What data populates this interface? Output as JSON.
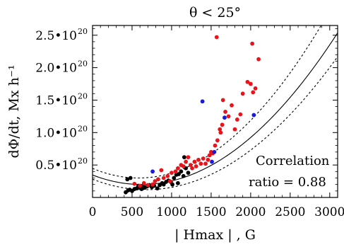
{
  "chart_data": {
    "type": "scatter",
    "title": "θ < 25°",
    "xlabel": "| Hmax | , G",
    "ylabel": "dΦ/dt, Mx h⁻¹",
    "xlim": [
      0,
      3100
    ],
    "ylim": [
      0,
      2.65e+20
    ],
    "x_ticks": [
      0,
      500,
      1000,
      1500,
      2000,
      2500,
      3000
    ],
    "x_tick_labels": [
      "0",
      "500",
      "1000",
      "1500",
      "2000",
      "2500",
      "3000"
    ],
    "y_ticks": [
      5e+19,
      1e+20,
      1.5e+20,
      2e+20,
      2.5e+20
    ],
    "y_tick_labels": [
      "0.5•10",
      "1.0•10",
      "1.5•10",
      "2.0•10",
      "2.5•10"
    ],
    "y_tick_exponent": "20",
    "grid": false,
    "annotation": {
      "line1": "Correlation",
      "line2": "ratio =  0.88"
    },
    "colors": {
      "black": "#000000",
      "red": "#e8141c",
      "blue": "#1a1adb"
    },
    "series": [
      {
        "color": "#000000",
        "points": [
          [
            420,
            8e+18
          ],
          [
            450,
            1.1e+19
          ],
          [
            470,
            1.2e+19
          ],
          [
            500,
            1e+19
          ],
          [
            530,
            1.3e+19
          ],
          [
            560,
            1.4e+19
          ],
          [
            580,
            1.8e+19
          ],
          [
            600,
            1.6e+19
          ],
          [
            620,
            1.3e+19
          ],
          [
            640,
            1.8e+19
          ],
          [
            660,
            1.5e+19
          ],
          [
            690,
            1.7e+19
          ],
          [
            720,
            1.9e+19
          ],
          [
            750,
            1.6e+19
          ],
          [
            780,
            1.8e+19
          ],
          [
            820,
            1.4e+19
          ],
          [
            850,
            1.9e+19
          ],
          [
            880,
            2.2e+19
          ],
          [
            900,
            2e+19
          ],
          [
            930,
            2.4e+19
          ],
          [
            960,
            2.6e+19
          ],
          [
            990,
            2.4e+19
          ],
          [
            1030,
            3e+19
          ],
          [
            1060,
            3.5e+19
          ],
          [
            1090,
            3.6e+19
          ],
          [
            1120,
            4e+19
          ],
          [
            1150,
            3.3e+19
          ],
          [
            1180,
            4.5e+19
          ],
          [
            1210,
            3.8e+19
          ],
          [
            1160,
            6.2e+19
          ],
          [
            440,
            2.8e+19
          ],
          [
            480,
            3e+19
          ],
          [
            1010,
            2e+19
          ],
          [
            1080,
            2.2e+19
          ]
        ]
      },
      {
        "color": "#e8141c",
        "points": [
          [
            530,
            2.1e+19
          ],
          [
            600,
            1.8e+19
          ],
          [
            650,
            2.2e+19
          ],
          [
            700,
            1.9e+19
          ],
          [
            760,
            2e+19
          ],
          [
            790,
            2.5e+19
          ],
          [
            830,
            2.8e+19
          ],
          [
            870,
            4.2e+19
          ],
          [
            900,
            3e+19
          ],
          [
            950,
            3.3e+19
          ],
          [
            980,
            2.5e+19
          ],
          [
            1000,
            3.8e+19
          ],
          [
            1050,
            4e+19
          ],
          [
            1080,
            4.5e+19
          ],
          [
            1120,
            5e+19
          ],
          [
            1150,
            4.8e+19
          ],
          [
            1180,
            5.5e+19
          ],
          [
            1210,
            6.2e+19
          ],
          [
            1240,
            5e+19
          ],
          [
            1260,
            4.5e+19
          ],
          [
            1290,
            5.5e+19
          ],
          [
            1310,
            4.8e+19
          ],
          [
            1340,
            5.8e+19
          ],
          [
            1370,
            5.2e+19
          ],
          [
            1400,
            6e+19
          ],
          [
            1430,
            5.2e+19
          ],
          [
            1460,
            5.8e+19
          ],
          [
            1480,
            6.5e+19
          ],
          [
            1500,
            7e+19
          ],
          [
            1520,
            6.8e+19
          ],
          [
            1550,
            8e+19
          ],
          [
            1580,
            8.8e+19
          ],
          [
            1610,
            1.05e+20
          ],
          [
            1640,
            1.12e+20
          ],
          [
            1650,
            1.5e+20
          ],
          [
            1680,
            1.32e+20
          ],
          [
            1720,
            1.25e+20
          ],
          [
            1760,
            1.42e+20
          ],
          [
            1800,
            1.05e+20
          ],
          [
            1830,
            1.2e+20
          ],
          [
            1870,
            1.28e+20
          ],
          [
            1900,
            1.6e+20
          ],
          [
            1960,
            1.78e+20
          ],
          [
            2000,
            1.75e+20
          ],
          [
            2030,
            1.62e+20
          ],
          [
            2060,
            1.68e+20
          ],
          [
            2100,
            2.13e+20
          ],
          [
            2020,
            2.37e+20
          ],
          [
            1570,
            2.47e+20
          ],
          [
            1620,
            1e+20
          ]
        ]
      },
      {
        "color": "#1a1adb",
        "points": [
          [
            760,
            4e+19
          ],
          [
            1510,
            5.5e+19
          ],
          [
            1540,
            7e+19
          ],
          [
            1390,
            1.48e+20
          ],
          [
            1670,
            1.23e+20
          ],
          [
            2040,
            1.27e+20
          ]
        ]
      }
    ],
    "fit_line": {
      "equation": "y = 3.8e13·(x − 620)² + 2.0e19",
      "style": "solid",
      "color": "#000000"
    },
    "bounds": [
      {
        "equation": "y = 4.4e13·(x − 580)² + 3.0e19",
        "style": "dashed",
        "color": "#000000"
      },
      {
        "equation": "y = 3.5e13·(x − 680)² + 1.2e19",
        "style": "dashed",
        "color": "#000000"
      }
    ]
  }
}
